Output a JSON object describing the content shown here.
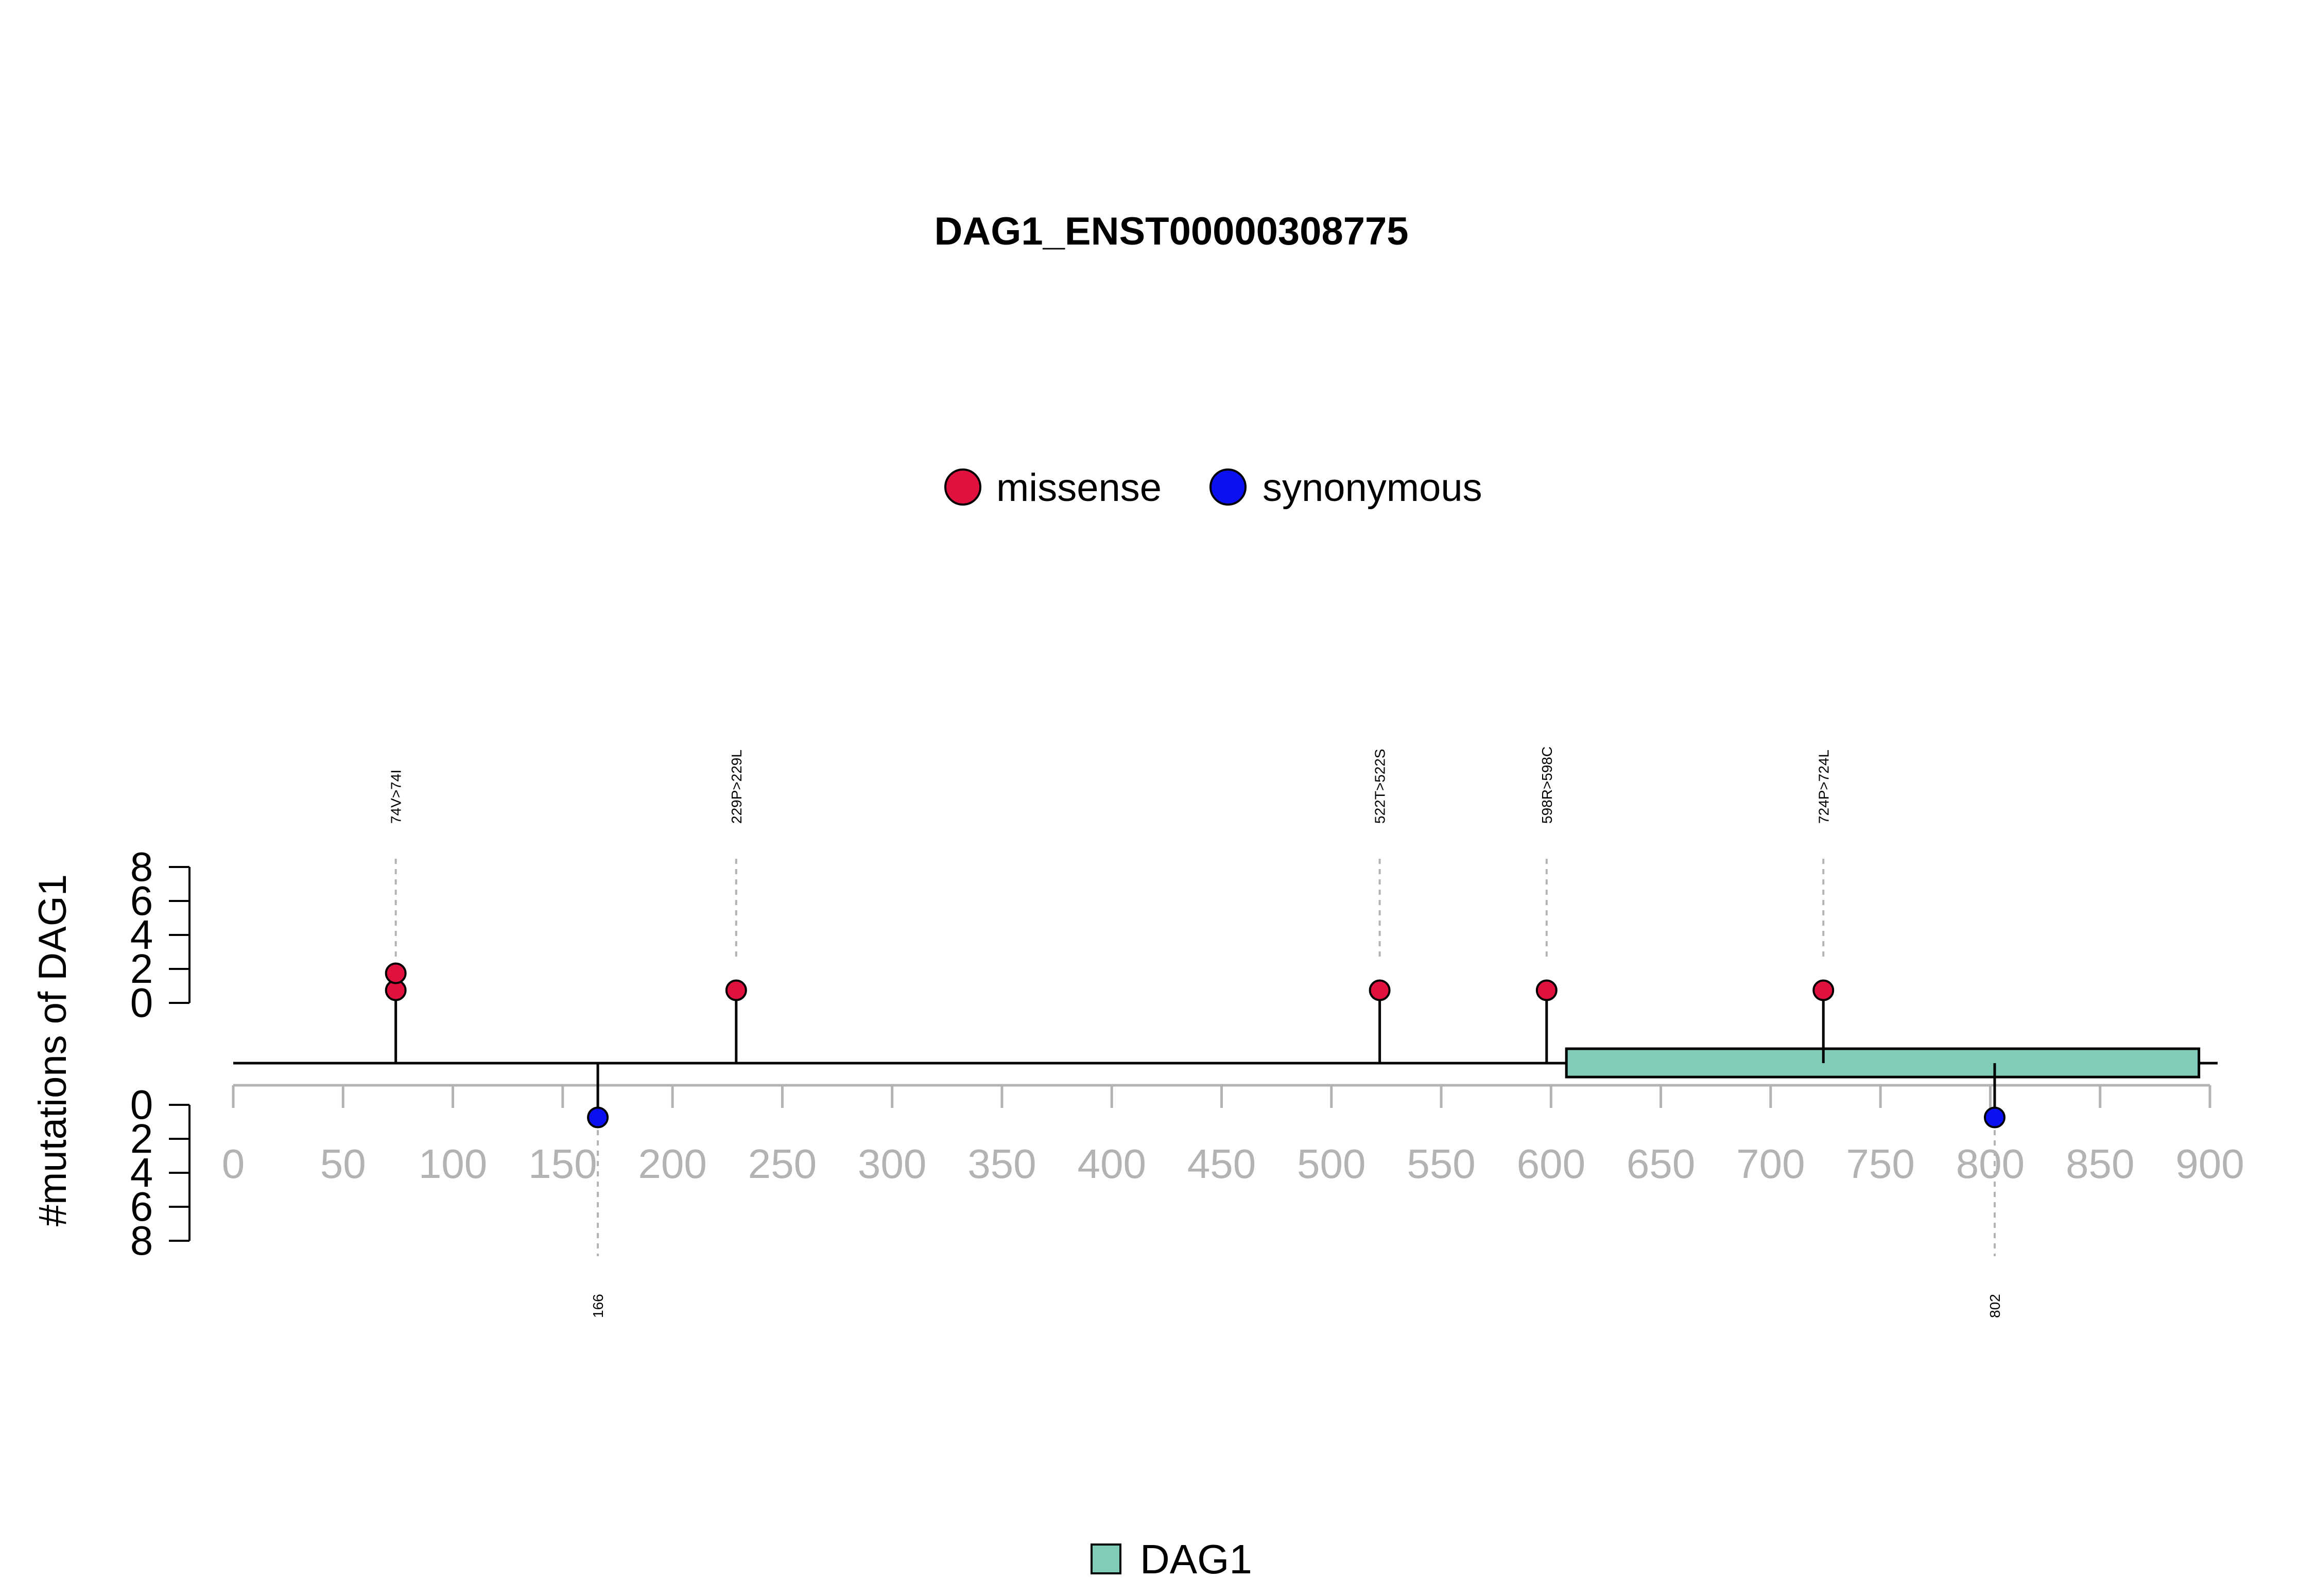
{
  "chart_data": {
    "type": "lollipop",
    "title": "DAG1_ENST00000308775",
    "ylabel": "#mutations of DAG1",
    "xlim": [
      0,
      900
    ],
    "x_ticks": [
      "0",
      "50",
      "100",
      "150",
      "200",
      "250",
      "300",
      "350",
      "400",
      "450",
      "500",
      "550",
      "600",
      "650",
      "700",
      "750",
      "800",
      "850",
      "900"
    ],
    "y_ticks_top": [
      "0",
      "2",
      "4",
      "6",
      "8"
    ],
    "y_ticks_bottom": [
      "0",
      "2",
      "4",
      "6",
      "8"
    ],
    "legend": [
      {
        "label": "missense",
        "color": "#e0103f"
      },
      {
        "label": "synonymous",
        "color": "#0a10f0"
      }
    ],
    "mutations_top": [
      {
        "position": 74,
        "label": "74V>74I",
        "type": "missense",
        "count": 2
      },
      {
        "position": 229,
        "label": "229P>229L",
        "type": "missense",
        "count": 1
      },
      {
        "position": 522,
        "label": "522T>522S",
        "type": "missense",
        "count": 1
      },
      {
        "position": 598,
        "label": "598R>598C",
        "type": "missense",
        "count": 1
      },
      {
        "position": 724,
        "label": "724P>724L",
        "type": "missense",
        "count": 1
      }
    ],
    "mutations_bottom": [
      {
        "position": 166,
        "label": "166",
        "type": "synonymous",
        "count": 1
      },
      {
        "position": 802,
        "label": "802",
        "type": "synonymous",
        "count": 1
      }
    ],
    "domains": [
      {
        "name": "DAG1",
        "start": 607,
        "end": 895,
        "color": "#7fccb8"
      }
    ],
    "domain_legend": [
      {
        "label": "DAG1",
        "color": "#7fccb8"
      }
    ]
  }
}
